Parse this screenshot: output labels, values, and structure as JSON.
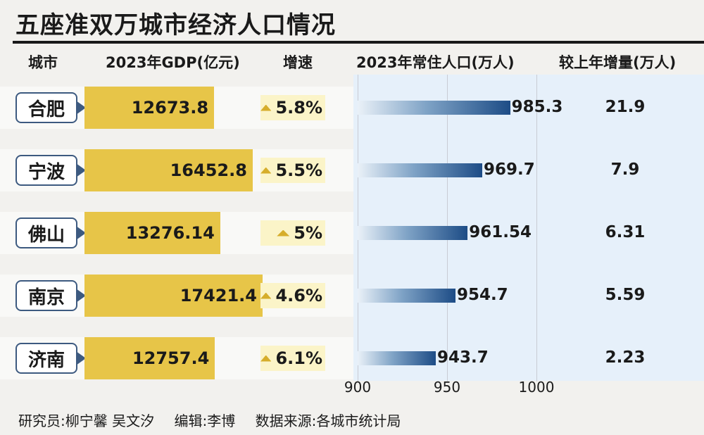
{
  "title": "五座准双万城市经济人口情况",
  "headers": {
    "city": "城市",
    "gdp": "2023年GDP(亿元)",
    "growth": "增速",
    "population": "2023年常住人口(万人)",
    "increase": "较上年增量(万人)"
  },
  "chart_data": {
    "type": "table",
    "title": "五座准双万城市经济人口情况",
    "columns": [
      "城市",
      "2023年GDP(亿元)",
      "增速",
      "2023年常住人口(万人)",
      "较上年增量(万人)"
    ],
    "rows": [
      {
        "city": "合肥",
        "gdp": 12673.8,
        "gdp_label": "12673.8",
        "growth": "5.8%",
        "population": 985.3,
        "population_label": "985.3",
        "increase": "21.9"
      },
      {
        "city": "宁波",
        "gdp": 16452.8,
        "gdp_label": "16452.8",
        "growth": "5.5%",
        "population": 969.7,
        "population_label": "969.7",
        "increase": "7.9"
      },
      {
        "city": "佛山",
        "gdp": 13276.14,
        "gdp_label": "13276.14",
        "growth": "5%",
        "population": 961.54,
        "population_label": "961.54",
        "increase": "6.31"
      },
      {
        "city": "南京",
        "gdp": 17421.4,
        "gdp_label": "17421.4",
        "growth": "4.6%",
        "population": 954.7,
        "population_label": "954.7",
        "increase": "5.59"
      },
      {
        "city": "济南",
        "gdp": 12757.4,
        "gdp_label": "12757.4",
        "growth": "6.1%",
        "population": 943.7,
        "population_label": "943.7",
        "increase": "2.23"
      }
    ],
    "population_axis": {
      "min": 900,
      "max": 1000,
      "ticks": [
        "900",
        "950",
        "1000"
      ]
    },
    "gdp_axis": {
      "min": 0,
      "max": 17421.4
    }
  },
  "footer": {
    "researchers": "研究员:柳宁馨 吴文汐",
    "editor": "编辑:李博",
    "source": "数据来源:各城市统计局"
  },
  "colors": {
    "gdp_bar": "#e7c548",
    "growth_band": "#fbf4c8",
    "population_bar_end": "#1d4c86",
    "city_border": "#3d5a80",
    "right_panel": "#e6f0fa"
  }
}
